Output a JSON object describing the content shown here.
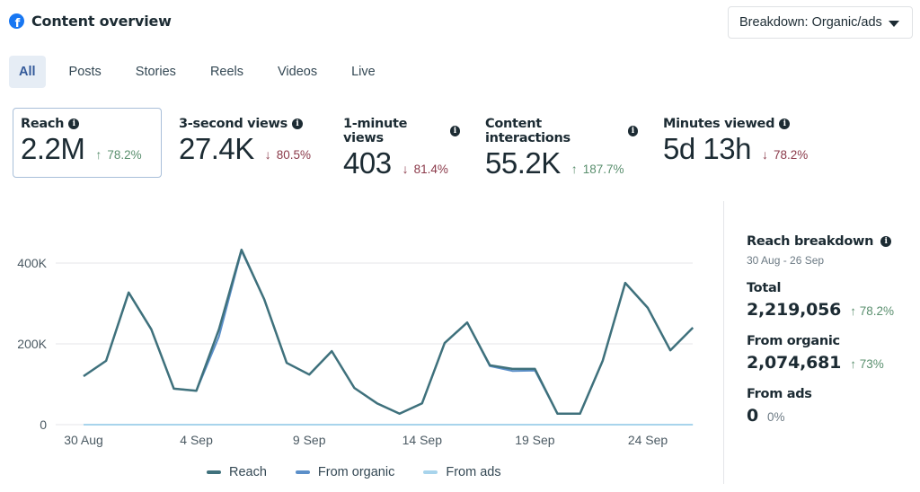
{
  "header": {
    "title": "Content overview",
    "icon": "facebook-icon"
  },
  "breakdown_dropdown": {
    "label": "Breakdown: Organic/ads"
  },
  "tabs": [
    {
      "label": "All",
      "active": true
    },
    {
      "label": "Posts",
      "active": false
    },
    {
      "label": "Stories",
      "active": false
    },
    {
      "label": "Reels",
      "active": false
    },
    {
      "label": "Videos",
      "active": false
    },
    {
      "label": "Live",
      "active": false
    }
  ],
  "metrics": [
    {
      "label": "Reach",
      "value": "2.2M",
      "delta": "78.2%",
      "direction": "up",
      "active": true
    },
    {
      "label": "3-second views",
      "value": "27.4K",
      "delta": "80.5%",
      "direction": "down",
      "active": false
    },
    {
      "label": "1-minute views",
      "value": "403",
      "delta": "81.4%",
      "direction": "down",
      "active": false
    },
    {
      "label": "Content interactions",
      "value": "55.2K",
      "delta": "187.7%",
      "direction": "up",
      "active": false
    },
    {
      "label": "Minutes viewed",
      "value": "5d 13h",
      "delta": "78.2%",
      "direction": "down",
      "active": false
    }
  ],
  "reach_breakdown": {
    "title": "Reach breakdown",
    "date_range": "30 Aug - 26 Sep",
    "rows": [
      {
        "label": "Total",
        "value": "2,219,056",
        "delta": "78.2%",
        "direction": "up"
      },
      {
        "label": "From organic",
        "value": "2,074,681",
        "delta": "73%",
        "direction": "up"
      },
      {
        "label": "From ads",
        "value": "0",
        "delta": "0%",
        "direction": "neutral"
      }
    ]
  },
  "colors": {
    "reach": "#3f717c",
    "organic": "#5b8fc9",
    "ads": "#a8d4ec",
    "up": "#5a8f6e",
    "down": "#8b3a4a",
    "grid": "#e4e6e9"
  },
  "chart_data": {
    "type": "line",
    "title": "",
    "xlabel": "",
    "ylabel": "",
    "x": [
      "30 Aug",
      "31 Aug",
      "1 Sep",
      "2 Sep",
      "3 Sep",
      "4 Sep",
      "5 Sep",
      "6 Sep",
      "7 Sep",
      "8 Sep",
      "9 Sep",
      "10 Sep",
      "11 Sep",
      "12 Sep",
      "13 Sep",
      "14 Sep",
      "15 Sep",
      "16 Sep",
      "17 Sep",
      "18 Sep",
      "19 Sep",
      "20 Sep",
      "21 Sep",
      "22 Sep",
      "23 Sep",
      "24 Sep",
      "25 Sep",
      "26 Sep"
    ],
    "x_tick_labels": [
      "30 Aug",
      "4 Sep",
      "9 Sep",
      "14 Sep",
      "19 Sep",
      "24 Sep"
    ],
    "x_tick_indices": [
      0,
      5,
      10,
      15,
      20,
      25
    ],
    "y_ticks": [
      0,
      200000,
      400000
    ],
    "y_tick_labels": [
      "0",
      "200K",
      "400K"
    ],
    "ylim": [
      0,
      400000
    ],
    "grid": true,
    "legend_position": "bottom",
    "series": [
      {
        "name": "Reach",
        "color_key": "reach",
        "values": [
          120000,
          158000,
          327000,
          236000,
          89000,
          84000,
          236000,
          433000,
          311000,
          153000,
          124000,
          182000,
          91000,
          53000,
          27000,
          53000,
          202000,
          253000,
          147000,
          138000,
          138000,
          27000,
          27000,
          158000,
          351000,
          289000,
          184000,
          240000
        ]
      },
      {
        "name": "From organic",
        "color_key": "organic",
        "values": [
          120000,
          158000,
          327000,
          236000,
          89000,
          84000,
          218000,
          430000,
          311000,
          153000,
          124000,
          182000,
          91000,
          53000,
          27000,
          53000,
          202000,
          253000,
          145000,
          133000,
          134000,
          27000,
          27000,
          158000,
          351000,
          289000,
          184000,
          240000
        ]
      },
      {
        "name": "From ads",
        "color_key": "ads",
        "values": [
          0,
          0,
          0,
          0,
          0,
          0,
          0,
          0,
          0,
          0,
          0,
          0,
          0,
          0,
          0,
          0,
          0,
          0,
          0,
          0,
          0,
          0,
          0,
          0,
          0,
          0,
          0,
          0
        ]
      }
    ]
  }
}
